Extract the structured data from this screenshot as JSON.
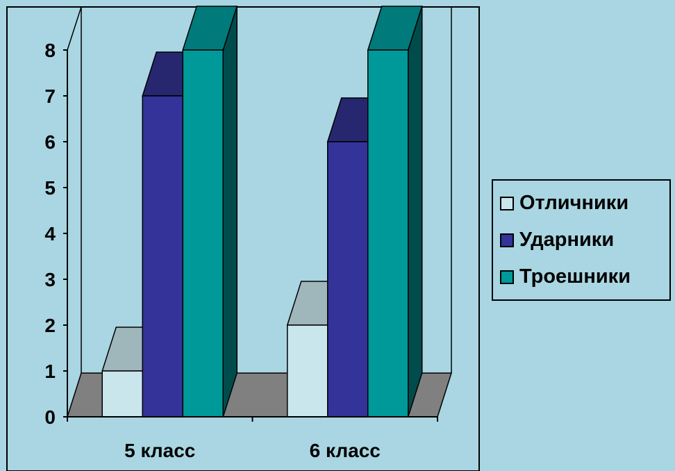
{
  "chart_data": {
    "type": "bar",
    "categories": [
      "5 класс",
      "6 класс"
    ],
    "series": [
      {
        "name": "Отличники",
        "values": [
          1,
          2
        ],
        "color": "#c9e6ec",
        "top_color": "#9fb6bb",
        "side_color": "#7e9297"
      },
      {
        "name": "Ударники",
        "values": [
          7,
          6
        ],
        "color": "#333399",
        "top_color": "#272770",
        "side_color": "#1c1c52"
      },
      {
        "name": "Троешники",
        "values": [
          8,
          8
        ],
        "color": "#009999",
        "top_color": "#007a7a",
        "side_color": "#004c4c"
      }
    ],
    "y_ticks": [
      "0",
      "1",
      "2",
      "3",
      "4",
      "5",
      "6",
      "7",
      "8"
    ],
    "ylim": [
      0,
      8
    ],
    "grid": false,
    "legend_position": "right",
    "style": "3d-column"
  }
}
